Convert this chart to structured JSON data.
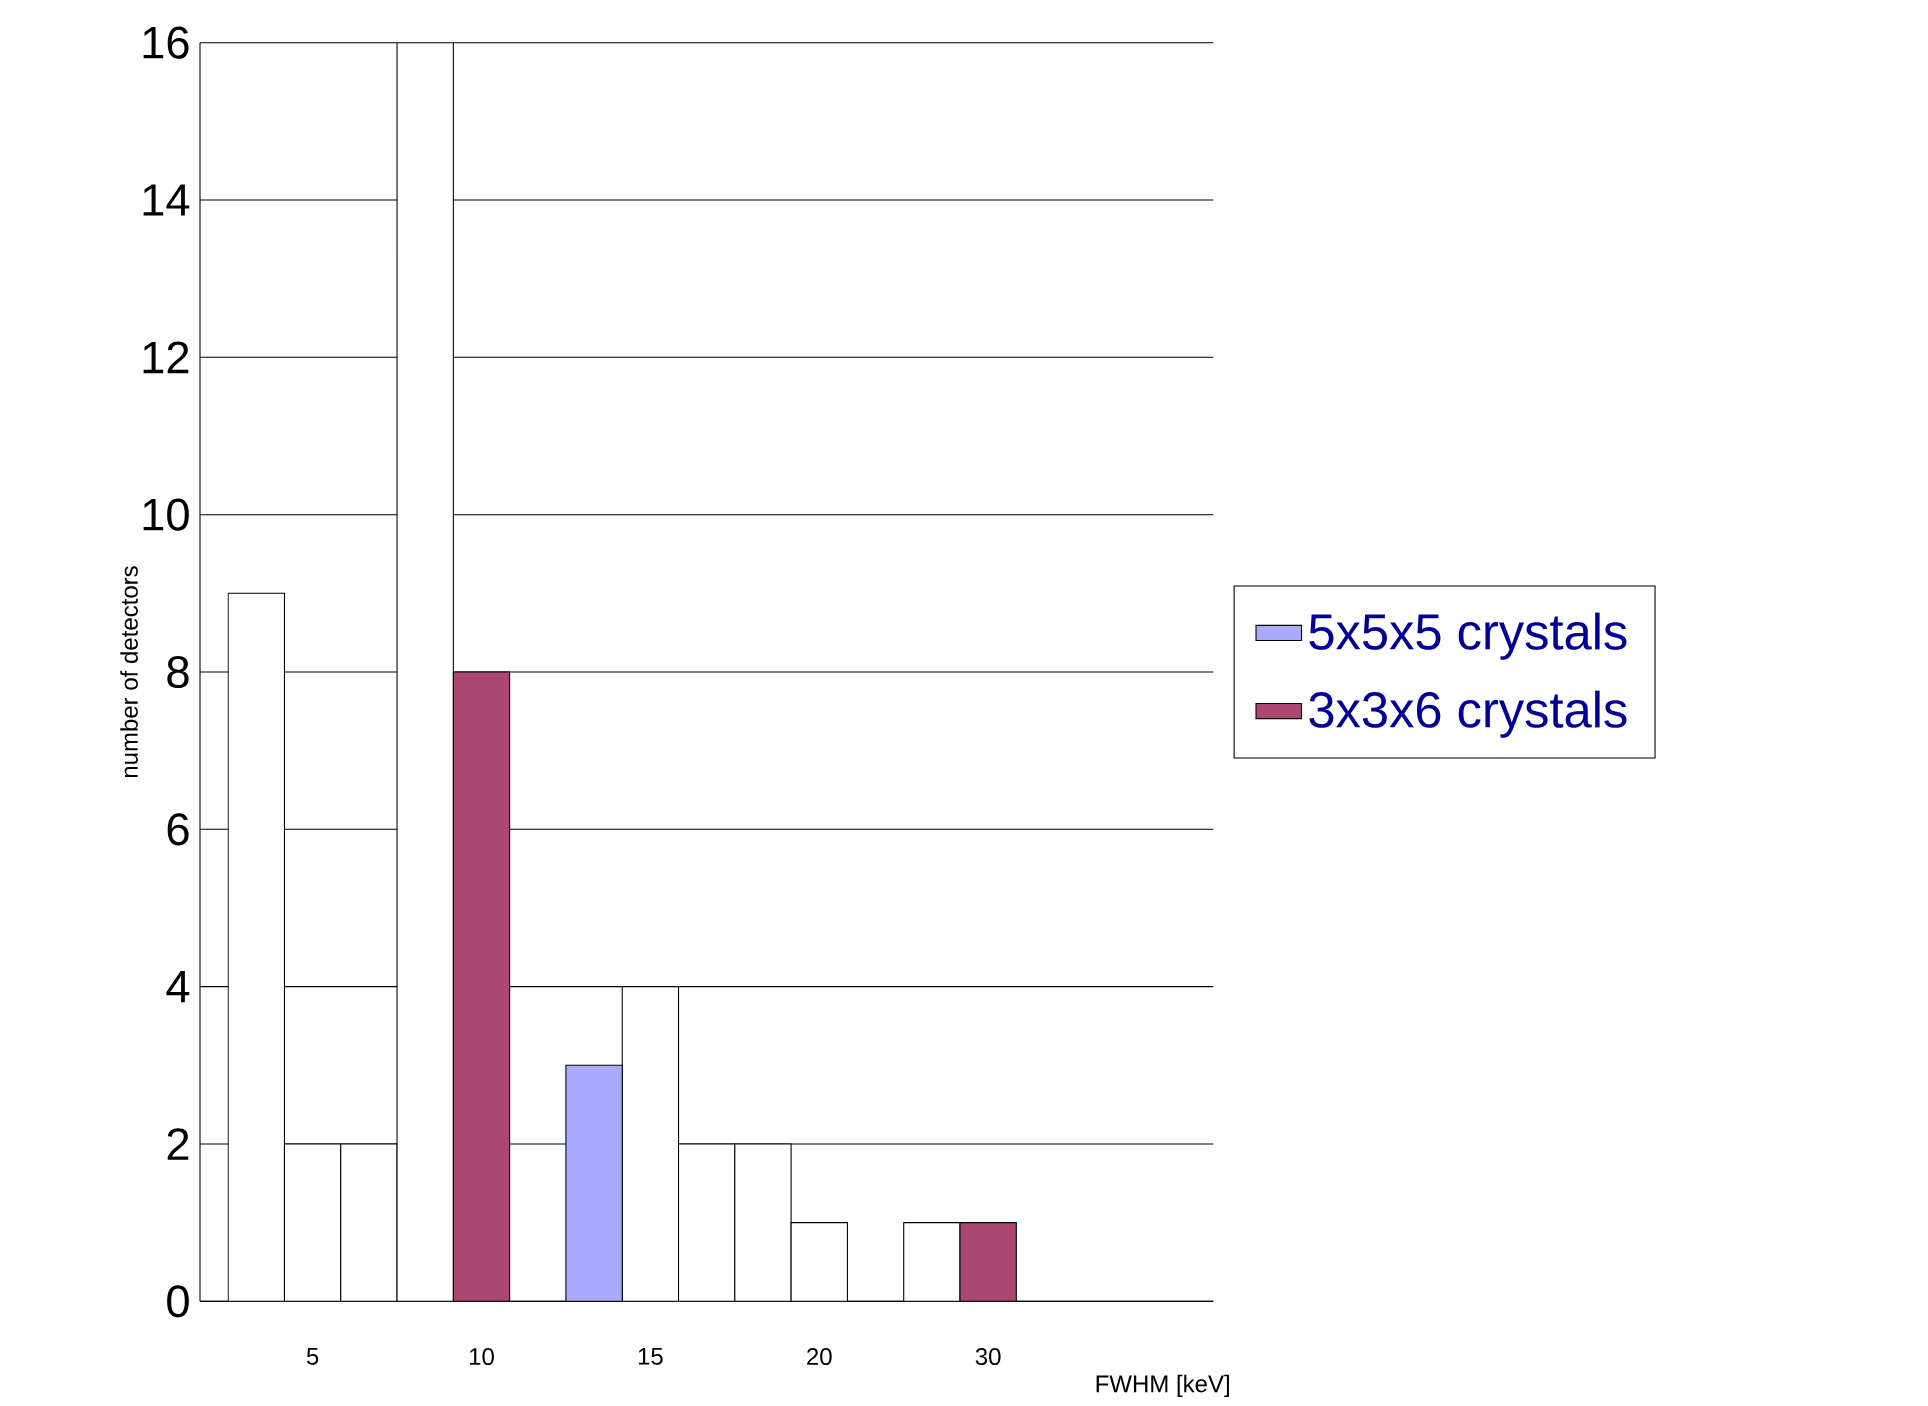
{
  "chart_data": {
    "type": "bar",
    "xlabel": "FWHM [keV]",
    "ylabel": "number of detectors",
    "categories": [
      null,
      "5",
      null,
      null,
      "10",
      null,
      null,
      "15",
      null,
      null,
      "20",
      null,
      null,
      "30",
      null,
      null,
      null,
      null
    ],
    "series": [
      {
        "color": "#ffffff",
        "values": [
          9,
          2,
          2,
          16,
          null,
          null,
          null,
          4,
          2,
          2,
          1,
          null,
          1,
          null,
          null,
          null,
          null,
          null
        ]
      },
      {
        "name": "5x5x5 crystals",
        "color": "#aaaaff",
        "values": [
          null,
          null,
          null,
          null,
          null,
          null,
          3,
          null,
          null,
          null,
          null,
          null,
          null,
          null,
          null,
          null,
          null,
          null
        ]
      },
      {
        "name": "3x3x6 crystals",
        "color": "#aa4873",
        "values": [
          null,
          null,
          null,
          null,
          8,
          null,
          null,
          null,
          null,
          null,
          null,
          null,
          null,
          1,
          null,
          null,
          null,
          null
        ]
      }
    ],
    "ylim": [
      0,
      16
    ],
    "yticks": [
      0,
      2,
      4,
      6,
      8,
      10,
      12,
      14,
      16
    ],
    "grid": "y",
    "legend": "right"
  }
}
